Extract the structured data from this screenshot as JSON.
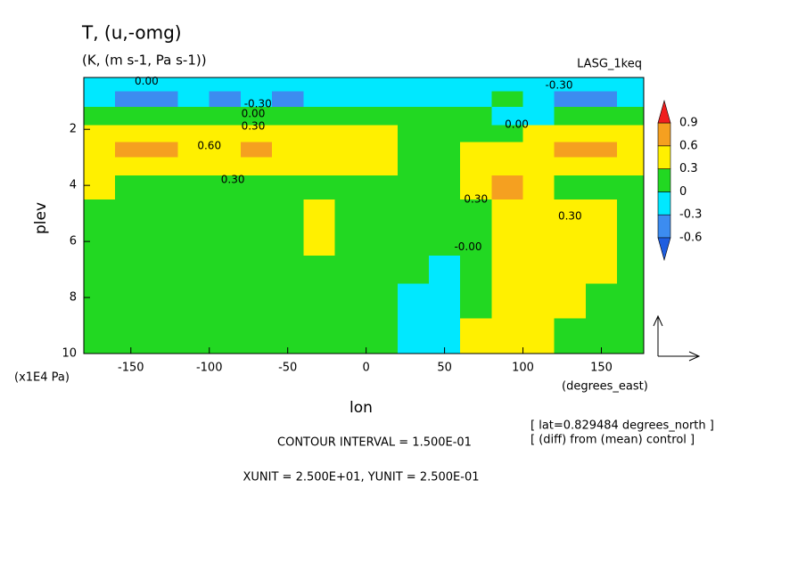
{
  "chart_data": {
    "type": "contour",
    "title": "T, (u,-omg)",
    "subtitle": "(K, (m s-1, Pa s-1))",
    "run_label": "LASG_1keq",
    "x_label": "lon",
    "x_unit": "(degrees_east)",
    "y_label": "plev",
    "y_unit": "(x1E4 Pa)",
    "notes": [
      "[ lat=0.829484 degrees_north ]",
      "[ (diff) from (mean) control ]"
    ],
    "contour_interval": "CONTOUR INTERVAL = 1.500E-01",
    "vector_units": "XUNIT = 2.500E+01, YUNIT = 2.500E-01",
    "xlim": [
      -180,
      177
    ],
    "ylim": [
      10,
      0.15
    ],
    "xticks": [
      -150,
      -100,
      -50,
      0,
      50,
      100,
      150
    ],
    "yticks": [
      2,
      4,
      6,
      8,
      10
    ],
    "levels": [
      -0.6,
      -0.3,
      0,
      0.3,
      0.6,
      0.9
    ],
    "colors": [
      "#1e5ee0",
      "#3c8cf0",
      "#00e8ff",
      "#22d822",
      "#fff000",
      "#f5a020",
      "#f01e1e"
    ],
    "x": [
      -170,
      -150,
      -130,
      -110,
      -90,
      -70,
      -50,
      -30,
      -10,
      10,
      30,
      50,
      70,
      90,
      110,
      130,
      150,
      170
    ],
    "y": [
      0.4,
      0.9,
      1.5,
      2.2,
      2.7,
      3.3,
      4,
      5,
      6,
      7,
      8,
      9.5
    ],
    "z": [
      [
        -0.15,
        -0.15,
        -0.15,
        -0.15,
        -0.15,
        -0.15,
        -0.15,
        -0.15,
        -0.15,
        -0.15,
        -0.15,
        -0.15,
        -0.15,
        -0.15,
        -0.15,
        -0.15,
        -0.15,
        -0.15
      ],
      [
        -0.2,
        -0.4,
        -0.4,
        -0.2,
        -0.35,
        -0.2,
        -0.35,
        -0.2,
        -0.2,
        -0.2,
        -0.15,
        -0.15,
        -0.1,
        0.15,
        -0.2,
        -0.4,
        -0.4,
        -0.2
      ],
      [
        0.1,
        0.1,
        0.1,
        0.1,
        0.1,
        0.1,
        0.1,
        0.1,
        0.1,
        0.1,
        0.1,
        0.1,
        0.1,
        -0.1,
        -0.05,
        0.1,
        0.1,
        0.1
      ],
      [
        0.45,
        0.45,
        0.45,
        0.45,
        0.45,
        0.45,
        0.45,
        0.4,
        0.4,
        0.35,
        0.2,
        0.2,
        0.2,
        0.1,
        0.35,
        0.45,
        0.45,
        0.4
      ],
      [
        0.5,
        0.7,
        0.7,
        0.5,
        0.55,
        0.7,
        0.5,
        0.45,
        0.45,
        0.4,
        0.2,
        0.2,
        0.35,
        0.4,
        0.45,
        0.7,
        0.7,
        0.5
      ],
      [
        0.45,
        0.45,
        0.45,
        0.45,
        0.45,
        0.45,
        0.45,
        0.45,
        0.45,
        0.35,
        0.2,
        0.2,
        0.4,
        0.45,
        0.4,
        0.45,
        0.45,
        0.45
      ],
      [
        0.35,
        0.2,
        0.2,
        0.2,
        0.2,
        0.2,
        0.2,
        0.2,
        0.2,
        0.2,
        0.2,
        0.2,
        0.45,
        0.7,
        0.35,
        0.2,
        0.2,
        0.2
      ],
      [
        0.2,
        0.2,
        0.2,
        0.2,
        0.2,
        0.2,
        0.2,
        0.4,
        0.2,
        0.2,
        0.2,
        0.2,
        0.25,
        0.45,
        0.45,
        0.4,
        0.35,
        0.2
      ],
      [
        0.2,
        0.2,
        0.2,
        0.2,
        0.2,
        0.2,
        0.2,
        0.35,
        0.2,
        0.2,
        0.2,
        0.1,
        0.25,
        0.45,
        0.45,
        0.4,
        0.35,
        0.2
      ],
      [
        0.2,
        0.2,
        0.2,
        0.2,
        0.2,
        0.2,
        0.2,
        0.2,
        0.2,
        0.2,
        0.15,
        -0.1,
        0.2,
        0.45,
        0.45,
        0.4,
        0.35,
        0.2
      ],
      [
        0.2,
        0.2,
        0.2,
        0.2,
        0.2,
        0.2,
        0.2,
        0.2,
        0.2,
        0.2,
        -0.1,
        -0.15,
        0.2,
        0.45,
        0.4,
        0.35,
        0.2,
        0.2
      ],
      [
        0.2,
        0.2,
        0.2,
        0.2,
        0.2,
        0.2,
        0.2,
        0.2,
        0.2,
        0.2,
        -0.15,
        -0.15,
        0.35,
        0.45,
        0.35,
        0.2,
        0.2,
        0.2
      ]
    ],
    "contour_labels": [
      {
        "text": "0.00",
        "x": -140,
        "y": 0.3
      },
      {
        "text": "-0.30",
        "x": -69,
        "y": 1.1
      },
      {
        "text": "0.00",
        "x": -72,
        "y": 1.45
      },
      {
        "text": "0.30",
        "x": -72,
        "y": 1.9
      },
      {
        "text": "0.60",
        "x": -100,
        "y": 2.6
      },
      {
        "text": "0.30",
        "x": -85,
        "y": 3.8
      },
      {
        "text": "-0.30",
        "x": 123,
        "y": 0.44
      },
      {
        "text": "0.00",
        "x": 96,
        "y": 1.84
      },
      {
        "text": "0.30",
        "x": 70,
        "y": 4.5
      },
      {
        "text": "0.30",
        "x": 130,
        "y": 5.1
      },
      {
        "text": "-0.00",
        "x": 65,
        "y": 6.2
      }
    ]
  }
}
